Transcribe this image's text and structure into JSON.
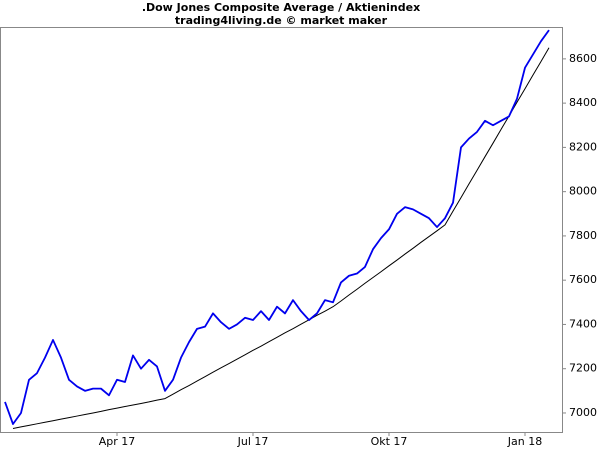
{
  "chart_data": {
    "type": "line",
    "title": ".Dow Jones Composite Average / Aktienindex",
    "subtitle": "trading4living.de © market maker",
    "categories": [
      null,
      null,
      null,
      null,
      null,
      null,
      null,
      null,
      null,
      null,
      null,
      null,
      null,
      null,
      "Apr 17",
      null,
      null,
      null,
      null,
      null,
      null,
      null,
      null,
      null,
      null,
      null,
      null,
      null,
      null,
      null,
      null,
      "Jul 17",
      null,
      null,
      null,
      null,
      null,
      null,
      null,
      null,
      null,
      null,
      null,
      null,
      null,
      null,
      null,
      null,
      "Okt 17",
      null,
      null,
      null,
      null,
      null,
      null,
      null,
      null,
      null,
      null,
      null,
      null,
      null,
      null,
      null,
      null,
      "Jan 18",
      null,
      null,
      null
    ],
    "series": [
      {
        "color": "#0000ee",
        "values": [
          7050,
          6950,
          7000,
          7150,
          7180,
          7250,
          7330,
          7250,
          7150,
          7120,
          7100,
          7110,
          7110,
          7080,
          7150,
          7140,
          7260,
          7200,
          7240,
          7210,
          7100,
          7150,
          7250,
          7320,
          7380,
          7390,
          7450,
          7410,
          7380,
          7400,
          7430,
          7420,
          7460,
          7420,
          7480,
          7450,
          7510,
          7460,
          7420,
          7450,
          7510,
          7500,
          7590,
          7620,
          7630,
          7660,
          7740,
          7790,
          7830,
          7900,
          7930,
          7920,
          7900,
          7880,
          7840,
          7880,
          7950,
          8200,
          8240,
          8270,
          8320,
          8300,
          8320,
          8340,
          8420,
          8560,
          8620,
          8680,
          8730
        ]
      },
      {
        "color": "#000000",
        "values": [
          null,
          6930,
          6937,
          6944,
          6951,
          6958,
          6965,
          6972,
          6979,
          6986,
          6993,
          7000,
          7007,
          7015,
          7022,
          7029,
          7036,
          7043,
          7050,
          7058,
          7065,
          7085,
          7105,
          7124,
          7144,
          7164,
          7184,
          7204,
          7223,
          7243,
          7263,
          7283,
          7302,
          7322,
          7342,
          7362,
          7381,
          7401,
          7421,
          7441,
          7460,
          7480,
          7506,
          7533,
          7559,
          7586,
          7612,
          7638,
          7665,
          7691,
          7718,
          7744,
          7771,
          7797,
          7823,
          7850,
          7912,
          7973,
          8035,
          8096,
          8158,
          8219,
          8281,
          8342,
          8404,
          8465,
          8527,
          8588,
          8650
        ]
      }
    ],
    "ylim": [
      6914,
      8744
    ],
    "yticks": [
      7000,
      7200,
      7400,
      7600,
      7800,
      8000,
      8200,
      8400,
      8600
    ],
    "grid": false
  }
}
